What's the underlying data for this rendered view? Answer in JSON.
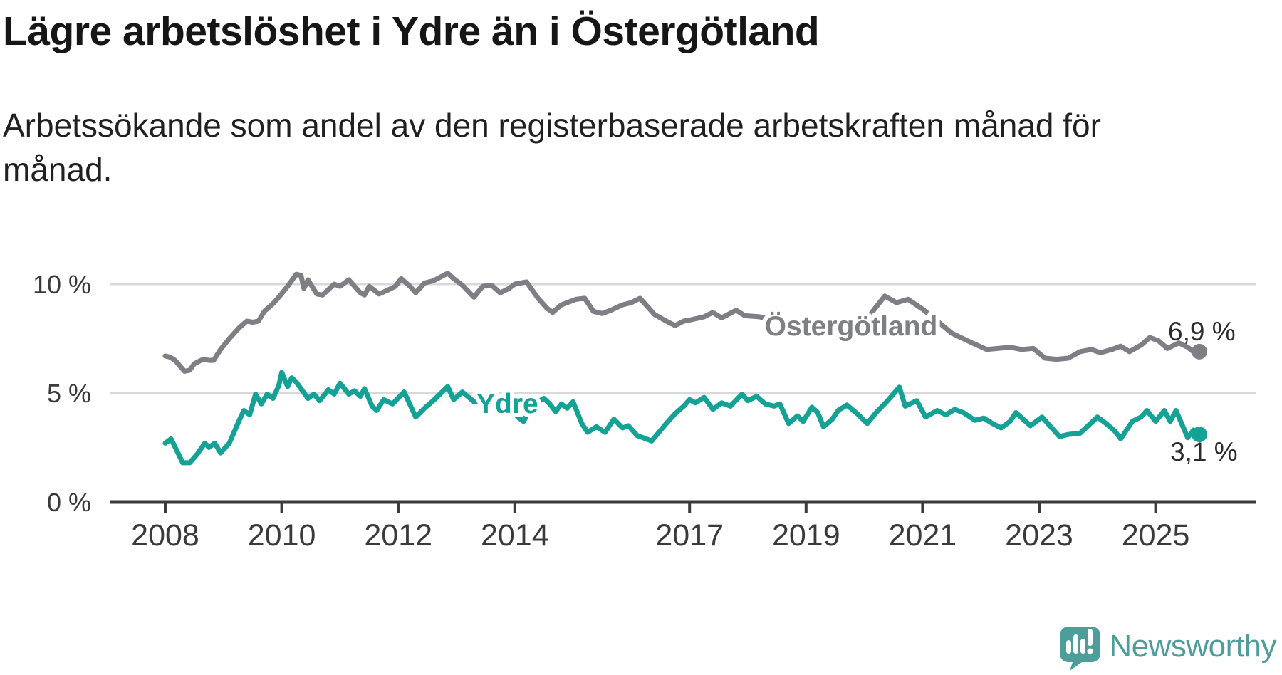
{
  "title": "Lägre arbetslöshet i Ydre än i Östergötland",
  "subtitle": "Arbetssökande som andel av den registerbaserade arbetskraften månad för månad.",
  "branding": {
    "name": "Newsworthy",
    "logo_icon": "bar-chart-speech-bubble-icon",
    "brand_color": "#4d9e9b"
  },
  "colors": {
    "background": "#ffffff",
    "title_text": "#161616",
    "body_text": "#202020",
    "axis": "#3b3b3b",
    "tick_text": "#3a3a3a",
    "gridline": "#d9d9d9",
    "series_ostergotland": "#7e7e85",
    "series_ydre": "#13a295",
    "end_label_text": "#2b2b2b"
  },
  "chart_data": {
    "type": "line",
    "title": "Lägre arbetslöshet i Ydre än i Östergötland",
    "subtitle": "Arbetssökande som andel av den registerbaserade arbetskraften månad för månad.",
    "x_unit": "decimal_year",
    "xlabel": "",
    "ylabel": "",
    "x_range_years": [
      2007.95,
      2026.3
    ],
    "ylim": [
      0,
      11
    ],
    "grid": "horizontal",
    "legend_position": "inline-labels",
    "x_ticks": [
      {
        "value": 2008,
        "label": "2008"
      },
      {
        "value": 2010,
        "label": "2010"
      },
      {
        "value": 2012,
        "label": "2012"
      },
      {
        "value": 2014,
        "label": "2014"
      },
      {
        "value": 2017,
        "label": "2017"
      },
      {
        "value": 2019,
        "label": "2019"
      },
      {
        "value": 2021,
        "label": "2021"
      },
      {
        "value": 2023,
        "label": "2023"
      },
      {
        "value": 2025,
        "label": "2025"
      }
    ],
    "y_ticks": [
      {
        "value": 0,
        "label": "0 %"
      },
      {
        "value": 5,
        "label": "5 %"
      },
      {
        "value": 10,
        "label": "10 %"
      }
    ],
    "series": [
      {
        "name": "Östergötland",
        "color": "#7e7e85",
        "end_value": 6.9,
        "end_label": "6,9 %",
        "points": [
          [
            2008.0,
            6.7
          ],
          [
            2008.08,
            6.65
          ],
          [
            2008.17,
            6.5
          ],
          [
            2008.33,
            6.0
          ],
          [
            2008.42,
            6.05
          ],
          [
            2008.5,
            6.35
          ],
          [
            2008.65,
            6.55
          ],
          [
            2008.75,
            6.5
          ],
          [
            2008.83,
            6.5
          ],
          [
            2008.95,
            7.0
          ],
          [
            2009.1,
            7.5
          ],
          [
            2009.27,
            8.0
          ],
          [
            2009.4,
            8.3
          ],
          [
            2009.5,
            8.25
          ],
          [
            2009.6,
            8.3
          ],
          [
            2009.7,
            8.75
          ],
          [
            2009.85,
            9.1
          ],
          [
            2009.95,
            9.4
          ],
          [
            2010.1,
            9.9
          ],
          [
            2010.25,
            10.45
          ],
          [
            2010.33,
            10.4
          ],
          [
            2010.38,
            9.8
          ],
          [
            2010.45,
            10.2
          ],
          [
            2010.6,
            9.55
          ],
          [
            2010.7,
            9.5
          ],
          [
            2010.9,
            10.0
          ],
          [
            2011.0,
            9.9
          ],
          [
            2011.15,
            10.2
          ],
          [
            2011.35,
            9.6
          ],
          [
            2011.42,
            9.5
          ],
          [
            2011.5,
            9.9
          ],
          [
            2011.67,
            9.55
          ],
          [
            2011.8,
            9.7
          ],
          [
            2011.95,
            9.9
          ],
          [
            2012.05,
            10.25
          ],
          [
            2012.2,
            9.9
          ],
          [
            2012.3,
            9.6
          ],
          [
            2012.45,
            10.05
          ],
          [
            2012.6,
            10.15
          ],
          [
            2012.85,
            10.5
          ],
          [
            2012.95,
            10.25
          ],
          [
            2013.1,
            9.95
          ],
          [
            2013.3,
            9.4
          ],
          [
            2013.45,
            9.9
          ],
          [
            2013.6,
            9.95
          ],
          [
            2013.75,
            9.6
          ],
          [
            2013.9,
            9.8
          ],
          [
            2014.0,
            10.0
          ],
          [
            2014.2,
            10.1
          ],
          [
            2014.4,
            9.35
          ],
          [
            2014.55,
            8.9
          ],
          [
            2014.65,
            8.7
          ],
          [
            2014.8,
            9.05
          ],
          [
            2015.05,
            9.3
          ],
          [
            2015.2,
            9.35
          ],
          [
            2015.35,
            8.75
          ],
          [
            2015.5,
            8.65
          ],
          [
            2015.65,
            8.8
          ],
          [
            2015.85,
            9.05
          ],
          [
            2016.0,
            9.15
          ],
          [
            2016.15,
            9.35
          ],
          [
            2016.4,
            8.6
          ],
          [
            2016.6,
            8.3
          ],
          [
            2016.75,
            8.1
          ],
          [
            2016.9,
            8.3
          ],
          [
            2017.0,
            8.35
          ],
          [
            2017.25,
            8.5
          ],
          [
            2017.4,
            8.7
          ],
          [
            2017.55,
            8.45
          ],
          [
            2017.8,
            8.8
          ],
          [
            2017.95,
            8.55
          ],
          [
            2018.2,
            8.5
          ],
          [
            2018.45,
            8.35
          ],
          [
            2018.7,
            8.25
          ],
          [
            2019.0,
            8.15
          ],
          [
            2019.3,
            8.05
          ],
          [
            2019.6,
            7.95
          ],
          [
            2019.9,
            8.1
          ],
          [
            2020.1,
            8.6
          ],
          [
            2020.35,
            9.45
          ],
          [
            2020.55,
            9.15
          ],
          [
            2020.75,
            9.3
          ],
          [
            2021.0,
            8.85
          ],
          [
            2021.3,
            8.2
          ],
          [
            2021.5,
            7.75
          ],
          [
            2021.85,
            7.3
          ],
          [
            2022.1,
            7.0
          ],
          [
            2022.3,
            7.05
          ],
          [
            2022.5,
            7.1
          ],
          [
            2022.7,
            7.0
          ],
          [
            2022.9,
            7.05
          ],
          [
            2023.1,
            6.6
          ],
          [
            2023.3,
            6.55
          ],
          [
            2023.5,
            6.6
          ],
          [
            2023.7,
            6.9
          ],
          [
            2023.9,
            7.0
          ],
          [
            2024.05,
            6.85
          ],
          [
            2024.25,
            7.0
          ],
          [
            2024.4,
            7.15
          ],
          [
            2024.55,
            6.9
          ],
          [
            2024.75,
            7.2
          ],
          [
            2024.9,
            7.55
          ],
          [
            2025.05,
            7.4
          ],
          [
            2025.2,
            7.05
          ],
          [
            2025.4,
            7.3
          ],
          [
            2025.55,
            7.1
          ],
          [
            2025.67,
            6.85
          ],
          [
            2025.75,
            6.9
          ]
        ]
      },
      {
        "name": "Ydre",
        "color": "#13a295",
        "end_value": 3.1,
        "end_label": "3,1 %",
        "points": [
          [
            2008.0,
            2.7
          ],
          [
            2008.1,
            2.9
          ],
          [
            2008.3,
            1.8
          ],
          [
            2008.42,
            1.8
          ],
          [
            2008.55,
            2.2
          ],
          [
            2008.68,
            2.7
          ],
          [
            2008.75,
            2.5
          ],
          [
            2008.85,
            2.7
          ],
          [
            2008.95,
            2.25
          ],
          [
            2009.1,
            2.7
          ],
          [
            2009.27,
            3.75
          ],
          [
            2009.35,
            4.2
          ],
          [
            2009.45,
            4.0
          ],
          [
            2009.55,
            4.95
          ],
          [
            2009.65,
            4.5
          ],
          [
            2009.75,
            4.95
          ],
          [
            2009.85,
            4.75
          ],
          [
            2009.95,
            5.35
          ],
          [
            2010.0,
            5.95
          ],
          [
            2010.1,
            5.3
          ],
          [
            2010.17,
            5.7
          ],
          [
            2010.25,
            5.5
          ],
          [
            2010.45,
            4.75
          ],
          [
            2010.55,
            4.95
          ],
          [
            2010.65,
            4.65
          ],
          [
            2010.8,
            5.15
          ],
          [
            2010.9,
            4.95
          ],
          [
            2011.0,
            5.45
          ],
          [
            2011.15,
            4.95
          ],
          [
            2011.25,
            5.1
          ],
          [
            2011.35,
            4.85
          ],
          [
            2011.42,
            5.2
          ],
          [
            2011.55,
            4.4
          ],
          [
            2011.63,
            4.2
          ],
          [
            2011.75,
            4.7
          ],
          [
            2011.9,
            4.5
          ],
          [
            2012.1,
            5.05
          ],
          [
            2012.3,
            3.9
          ],
          [
            2012.45,
            4.3
          ],
          [
            2012.6,
            4.65
          ],
          [
            2012.85,
            5.3
          ],
          [
            2012.95,
            4.7
          ],
          [
            2013.1,
            5.05
          ],
          [
            2013.3,
            4.6
          ],
          [
            2013.5,
            4.65
          ],
          [
            2013.7,
            4.6
          ],
          [
            2013.9,
            4.5
          ],
          [
            2014.05,
            3.9
          ],
          [
            2014.15,
            3.7
          ],
          [
            2014.3,
            4.45
          ],
          [
            2014.5,
            4.75
          ],
          [
            2014.6,
            4.5
          ],
          [
            2014.7,
            4.15
          ],
          [
            2014.8,
            4.5
          ],
          [
            2014.9,
            4.3
          ],
          [
            2015.0,
            4.6
          ],
          [
            2015.15,
            3.6
          ],
          [
            2015.25,
            3.2
          ],
          [
            2015.4,
            3.45
          ],
          [
            2015.55,
            3.2
          ],
          [
            2015.7,
            3.8
          ],
          [
            2015.85,
            3.4
          ],
          [
            2015.95,
            3.5
          ],
          [
            2016.1,
            3.05
          ],
          [
            2016.35,
            2.8
          ],
          [
            2016.6,
            3.6
          ],
          [
            2016.75,
            4.05
          ],
          [
            2016.9,
            4.4
          ],
          [
            2017.0,
            4.7
          ],
          [
            2017.1,
            4.55
          ],
          [
            2017.25,
            4.8
          ],
          [
            2017.4,
            4.25
          ],
          [
            2017.55,
            4.55
          ],
          [
            2017.7,
            4.4
          ],
          [
            2017.9,
            4.95
          ],
          [
            2018.0,
            4.65
          ],
          [
            2018.15,
            4.85
          ],
          [
            2018.3,
            4.5
          ],
          [
            2018.45,
            4.4
          ],
          [
            2018.55,
            4.5
          ],
          [
            2018.7,
            3.6
          ],
          [
            2018.85,
            3.95
          ],
          [
            2018.95,
            3.7
          ],
          [
            2019.1,
            4.35
          ],
          [
            2019.2,
            4.1
          ],
          [
            2019.3,
            3.45
          ],
          [
            2019.45,
            3.8
          ],
          [
            2019.55,
            4.2
          ],
          [
            2019.7,
            4.45
          ],
          [
            2019.9,
            4.0
          ],
          [
            2020.05,
            3.6
          ],
          [
            2020.2,
            4.1
          ],
          [
            2020.4,
            4.65
          ],
          [
            2020.6,
            5.27
          ],
          [
            2020.7,
            4.4
          ],
          [
            2020.9,
            4.65
          ],
          [
            2021.05,
            3.9
          ],
          [
            2021.25,
            4.2
          ],
          [
            2021.4,
            4.0
          ],
          [
            2021.55,
            4.25
          ],
          [
            2021.7,
            4.1
          ],
          [
            2021.9,
            3.75
          ],
          [
            2022.05,
            3.85
          ],
          [
            2022.2,
            3.6
          ],
          [
            2022.35,
            3.4
          ],
          [
            2022.5,
            3.7
          ],
          [
            2022.6,
            4.1
          ],
          [
            2022.85,
            3.5
          ],
          [
            2023.05,
            3.9
          ],
          [
            2023.35,
            3.0
          ],
          [
            2023.5,
            3.1
          ],
          [
            2023.7,
            3.15
          ],
          [
            2024.0,
            3.9
          ],
          [
            2024.15,
            3.6
          ],
          [
            2024.3,
            3.25
          ],
          [
            2024.4,
            2.9
          ],
          [
            2024.6,
            3.7
          ],
          [
            2024.75,
            3.9
          ],
          [
            2024.85,
            4.2
          ],
          [
            2025.0,
            3.7
          ],
          [
            2025.15,
            4.2
          ],
          [
            2025.25,
            3.7
          ],
          [
            2025.35,
            4.2
          ],
          [
            2025.55,
            2.95
          ],
          [
            2025.65,
            3.3
          ],
          [
            2025.75,
            3.1
          ]
        ]
      }
    ],
    "annotations": [
      {
        "text": "Östergötland",
        "series": "Östergötland"
      },
      {
        "text": "Ydre",
        "series": "Ydre"
      }
    ]
  }
}
